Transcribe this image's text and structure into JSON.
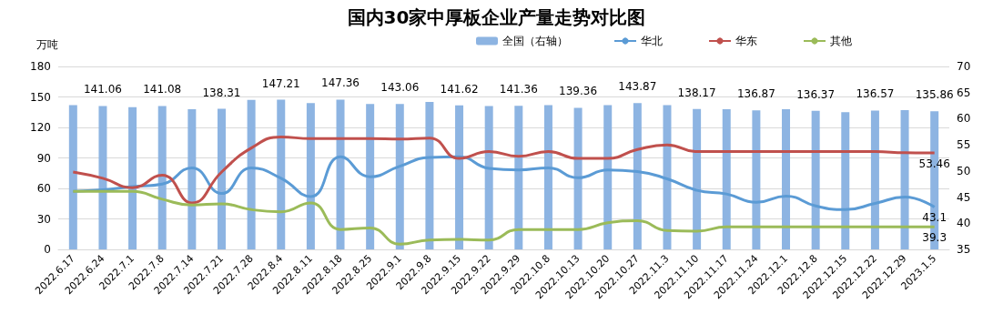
{
  "chart_data": {
    "type": "bar",
    "title": "国内30家中厚板企业产量走势对比图",
    "ylabel": "万吨",
    "categories": [
      "2022.6.17",
      "2022.6.24",
      "2022.7.1",
      "2022.7.8",
      "2022.7.14",
      "2022.7.21",
      "2022.7.28",
      "2022.8.4",
      "2022.8.11",
      "2022.8.18",
      "2022.8.25",
      "2022.9.1",
      "2022.9.8",
      "2022.9.15",
      "2022.9.22",
      "2022.9.29",
      "2022.10.8",
      "2022.10.13",
      "2022.10.20",
      "2022.10.27",
      "2022.11.3",
      "2022.11.10",
      "2022.11.17",
      "2022.11.24",
      "2022.12.1",
      "2022.12.8",
      "2022.12.15",
      "2022.12.22",
      "2022.12.29",
      "2023.1.5"
    ],
    "series": [
      {
        "name": "全国（右轴）",
        "color": "#8db4e2",
        "values": [
          142,
          141.06,
          140,
          141.08,
          138,
          138.31,
          147,
          147.21,
          144,
          147.36,
          143,
          143.06,
          145,
          141.62,
          141,
          141.36,
          142,
          139.36,
          142,
          143.87,
          142,
          138.17,
          138,
          136.87,
          138,
          136.37,
          135,
          136.57,
          137,
          135.86
        ],
        "value_labels": [
          null,
          "141.06",
          null,
          "141.08",
          null,
          "138.31",
          null,
          "147.21",
          null,
          "147.36",
          null,
          "143.06",
          null,
          "141.62",
          null,
          "141.36",
          null,
          "139.36",
          null,
          "143.87",
          null,
          "138.17",
          null,
          "136.87",
          null,
          "136.37",
          null,
          "136.57",
          null,
          "135.86"
        ]
      },
      {
        "name": "华北",
        "type": "line",
        "axis": "y2",
        "color": "#5b9bd5",
        "values": [
          46.1,
          46.4,
          47.0,
          47.5,
          50.6,
          45.7,
          50.6,
          48.6,
          45.1,
          52.7,
          48.9,
          50.9,
          52.6,
          52.7,
          50.5,
          50.2,
          50.6,
          48.7,
          50.2,
          49.9,
          48.5,
          46.3,
          45.6,
          44.0,
          45.2,
          43.3,
          42.6,
          43.8,
          45.0,
          43.1
        ],
        "value_labels": [
          null,
          null,
          null,
          null,
          null,
          null,
          null,
          null,
          null,
          null,
          null,
          null,
          null,
          null,
          null,
          null,
          null,
          null,
          null,
          null,
          null,
          null,
          null,
          null,
          null,
          null,
          null,
          null,
          null,
          "43.1"
        ]
      },
      {
        "name": "华东",
        "type": "line",
        "axis": "y2",
        "color": "#c0504d",
        "values": [
          49.8,
          48.6,
          46.8,
          49.2,
          43.9,
          49.8,
          54.4,
          56.5,
          56.2,
          56.2,
          56.2,
          56.1,
          56.3,
          52.4,
          53.7,
          52.8,
          53.7,
          52.4,
          52.4,
          54.1,
          55.0,
          53.7,
          53.7,
          53.7,
          53.7,
          53.7,
          53.7,
          53.7,
          53.5,
          53.46
        ],
        "value_labels": [
          null,
          null,
          null,
          null,
          null,
          null,
          null,
          null,
          null,
          null,
          null,
          null,
          null,
          null,
          null,
          null,
          null,
          null,
          null,
          null,
          null,
          null,
          null,
          null,
          null,
          null,
          null,
          null,
          null,
          "53.46"
        ]
      },
      {
        "name": "其他",
        "type": "line",
        "axis": "y2",
        "color": "#9bbb59",
        "values": [
          46.1,
          46.1,
          46.1,
          44.6,
          43.5,
          43.7,
          42.6,
          42.2,
          43.9,
          38.8,
          39.1,
          36.0,
          36.8,
          36.9,
          36.8,
          38.8,
          38.8,
          38.8,
          40.1,
          40.5,
          38.6,
          38.5,
          39.3,
          39.3,
          39.3,
          39.3,
          39.3,
          39.3,
          39.3,
          39.3
        ],
        "value_labels": [
          null,
          null,
          null,
          null,
          null,
          null,
          null,
          null,
          null,
          null,
          null,
          null,
          null,
          null,
          null,
          null,
          null,
          null,
          null,
          null,
          null,
          null,
          null,
          null,
          null,
          null,
          null,
          null,
          null,
          "39.3"
        ]
      }
    ],
    "ylim": [
      0,
      180
    ],
    "yticks": [
      0,
      30,
      60,
      90,
      120,
      150,
      180
    ],
    "y2lim": [
      35,
      70
    ],
    "y2ticks": [
      35,
      40,
      45,
      50,
      55,
      60,
      65,
      70
    ],
    "grid": "y",
    "legend": "top right",
    "marker": "none"
  }
}
